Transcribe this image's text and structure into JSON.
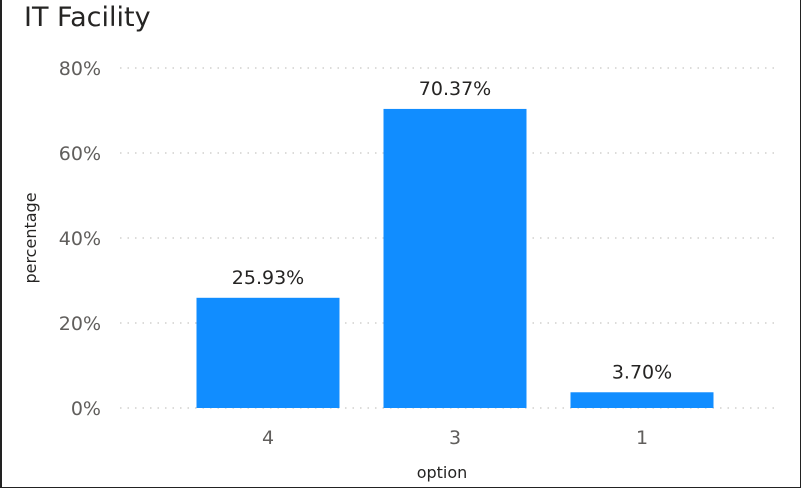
{
  "chart_data": {
    "type": "bar",
    "title": "IT Facility",
    "xlabel": "option",
    "ylabel": "percentage",
    "categories": [
      "4",
      "3",
      "1"
    ],
    "values": [
      25.93,
      70.37,
      3.7
    ],
    "data_labels": [
      "25.93%",
      "70.37%",
      "3.70%"
    ],
    "ylim": [
      0,
      80
    ],
    "yticks": [
      0,
      20,
      40,
      60,
      80
    ],
    "ytick_labels": [
      "0%",
      "20%",
      "40%",
      "60%",
      "80%"
    ],
    "grid": true,
    "grid_style": "dotted",
    "bar_color": "#118DFF",
    "grid_color": "#c8c6c4"
  }
}
